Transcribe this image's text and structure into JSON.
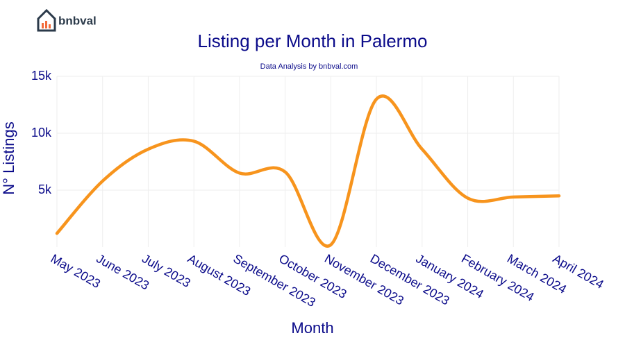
{
  "brand": "bnbval",
  "chart_data": {
    "type": "line",
    "title": "Listing per Month in Palermo",
    "subtitle": "Data Analysis by bnbval.com",
    "x_label": "Month",
    "y_label": "N° Listings",
    "categories": [
      "May 2023",
      "June 2023",
      "July 2023",
      "August 2023",
      "September 2023",
      "October 2023",
      "November 2023",
      "December 2023",
      "January 2024",
      "February 2024",
      "March 2024",
      "April 2024"
    ],
    "values": [
      1200,
      5800,
      8600,
      9300,
      6500,
      6600,
      200,
      13000,
      8600,
      4300,
      4400,
      4500
    ],
    "color": "#f7941d",
    "ylim": [
      0,
      15000
    ],
    "yticks": [
      {
        "value": 5000,
        "label": "5k"
      },
      {
        "value": 10000,
        "label": "10k"
      },
      {
        "value": 15000,
        "label": "15k"
      }
    ],
    "grid": true
  }
}
